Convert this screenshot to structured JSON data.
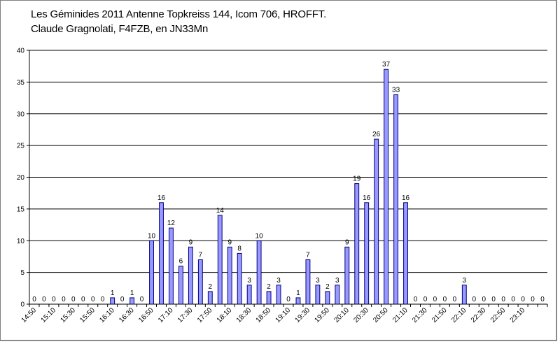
{
  "chart_data": {
    "type": "bar",
    "title": "Les Géminides 2011 Antenne Topkreiss 144, Icom 706, HROFFT.",
    "subtitle": "Claude Gragnolati, F4FZB, en JN33Mn",
    "ylim": [
      0,
      40
    ],
    "yticks": [
      0,
      5,
      10,
      15,
      20,
      25,
      30,
      35,
      40
    ],
    "grid": true,
    "x_tick_labels": [
      "14:50",
      "15:10",
      "15:30",
      "15:50",
      "16:10",
      "16:30",
      "16:50",
      "17:10",
      "17:30",
      "17:50",
      "18:10",
      "18:30",
      "18:50",
      "19:10",
      "19:30",
      "19:50",
      "20:10",
      "20:30",
      "20:50",
      "21:10",
      "21:30",
      "21:50",
      "22:10",
      "22:30",
      "22:50",
      "23:10"
    ],
    "values": [
      0,
      0,
      0,
      0,
      0,
      0,
      0,
      0,
      1,
      0,
      1,
      0,
      10,
      16,
      12,
      6,
      9,
      7,
      2,
      14,
      9,
      8,
      3,
      10,
      2,
      3,
      0,
      1,
      7,
      3,
      2,
      3,
      9,
      19,
      16,
      26,
      37,
      33,
      16,
      0,
      0,
      0,
      0,
      0,
      3,
      0,
      0,
      0,
      0,
      0,
      0,
      0,
      0
    ],
    "bar_color": "#9999ff",
    "bar_edge_color": "#000080"
  }
}
